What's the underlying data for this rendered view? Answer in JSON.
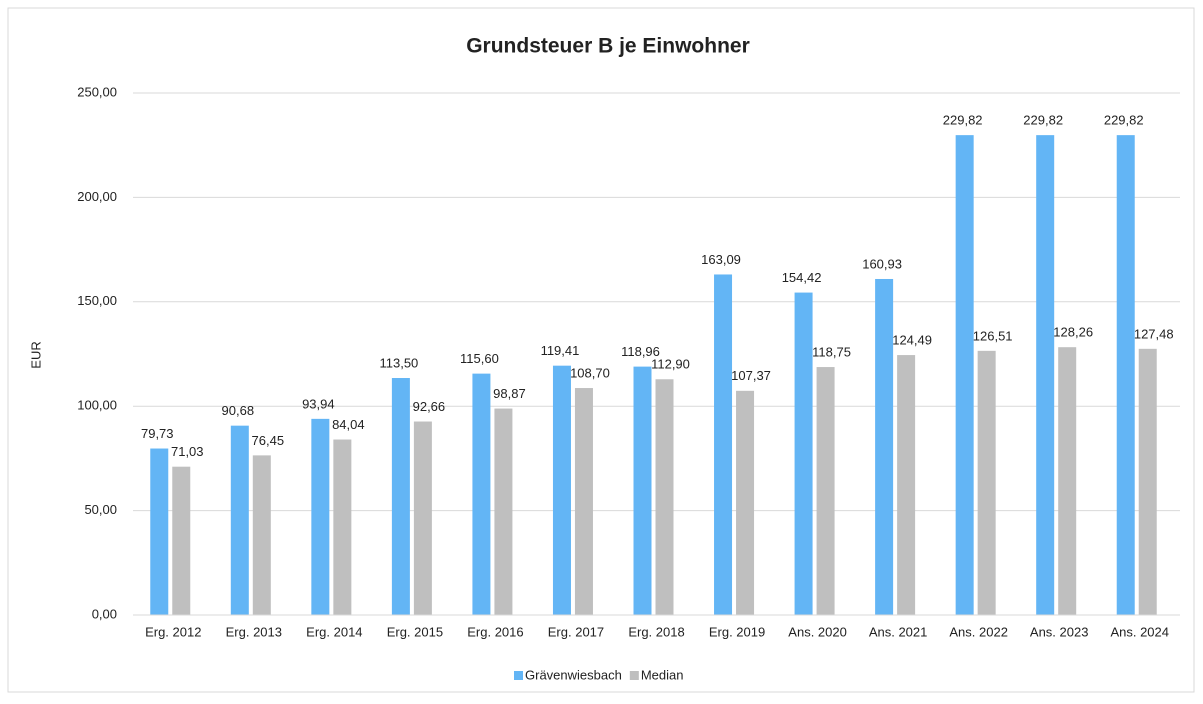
{
  "chart_data": {
    "type": "bar",
    "title": "Grundsteuer B je Einwohner",
    "y_label": "EUR",
    "categories": [
      "Erg. 2012",
      "Erg. 2013",
      "Erg. 2014",
      "Erg. 2015",
      "Erg. 2016",
      "Erg. 2017",
      "Erg. 2018",
      "Erg. 2019",
      "Ans. 2020",
      "Ans. 2021",
      "Ans. 2022",
      "Ans. 2023",
      "Ans. 2024"
    ],
    "series": [
      {
        "name": "Grävenwiesbach",
        "color": "#63b5f5",
        "values": [
          79.73,
          90.68,
          93.94,
          113.5,
          115.6,
          119.41,
          118.96,
          163.09,
          154.42,
          160.93,
          229.82,
          229.82,
          229.82
        ],
        "value_labels": [
          "79,73",
          "90,68",
          "93,94",
          "113,50",
          "115,60",
          "119,41",
          "118,96",
          "163,09",
          "154,42",
          "160,93",
          "229,82",
          "229,82",
          "229,82"
        ]
      },
      {
        "name": "Median",
        "color": "#bfbfbf",
        "values": [
          71.03,
          76.45,
          84.04,
          92.66,
          98.87,
          108.7,
          112.9,
          107.37,
          118.75,
          124.49,
          126.51,
          128.26,
          127.48
        ],
        "value_labels": [
          "71,03",
          "76,45",
          "84,04",
          "92,66",
          "98,87",
          "108,70",
          "112,90",
          "107,37",
          "118,75",
          "124,49",
          "126,51",
          "128,26",
          "127,48"
        ]
      }
    ],
    "ylim": [
      0,
      250
    ],
    "yticks": [
      {
        "value": 0,
        "label": "0,00"
      },
      {
        "value": 50,
        "label": "50,00"
      },
      {
        "value": 100,
        "label": "100,00"
      },
      {
        "value": 150,
        "label": "150,00"
      },
      {
        "value": 200,
        "label": "200,00"
      },
      {
        "value": 250,
        "label": "250,00"
      }
    ],
    "grid": true,
    "legend": "bottom"
  }
}
